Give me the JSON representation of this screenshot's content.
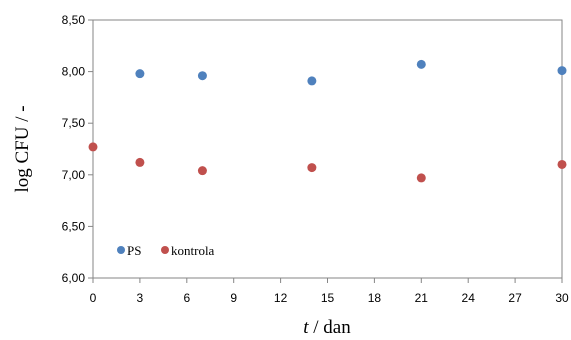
{
  "chart_data": {
    "type": "scatter",
    "title": "",
    "xlabel_var": "t",
    "xlabel_rest": " / dan",
    "ylabel": "log CFU / -",
    "xlim": [
      0,
      30
    ],
    "ylim": [
      6.0,
      8.5
    ],
    "xticks": [
      0,
      3,
      6,
      9,
      12,
      15,
      18,
      21,
      24,
      27,
      30
    ],
    "yticks": [
      6.0,
      6.5,
      7.0,
      7.5,
      8.0,
      8.5
    ],
    "ytick_labels": [
      "6,00",
      "6,50",
      "7,00",
      "7,50",
      "8,00",
      "8,50"
    ],
    "grid": false,
    "legend_position": "bottom-left",
    "series": [
      {
        "name": "PS",
        "color": "#4f81bd",
        "x": [
          3,
          7,
          14,
          21,
          30
        ],
        "y": [
          7.98,
          7.96,
          7.91,
          8.07,
          8.01
        ]
      },
      {
        "name": "kontrola",
        "color": "#c0504d",
        "x": [
          0,
          3,
          7,
          14,
          21,
          30
        ],
        "y": [
          7.27,
          7.12,
          7.04,
          7.07,
          6.97,
          7.1
        ]
      }
    ]
  }
}
